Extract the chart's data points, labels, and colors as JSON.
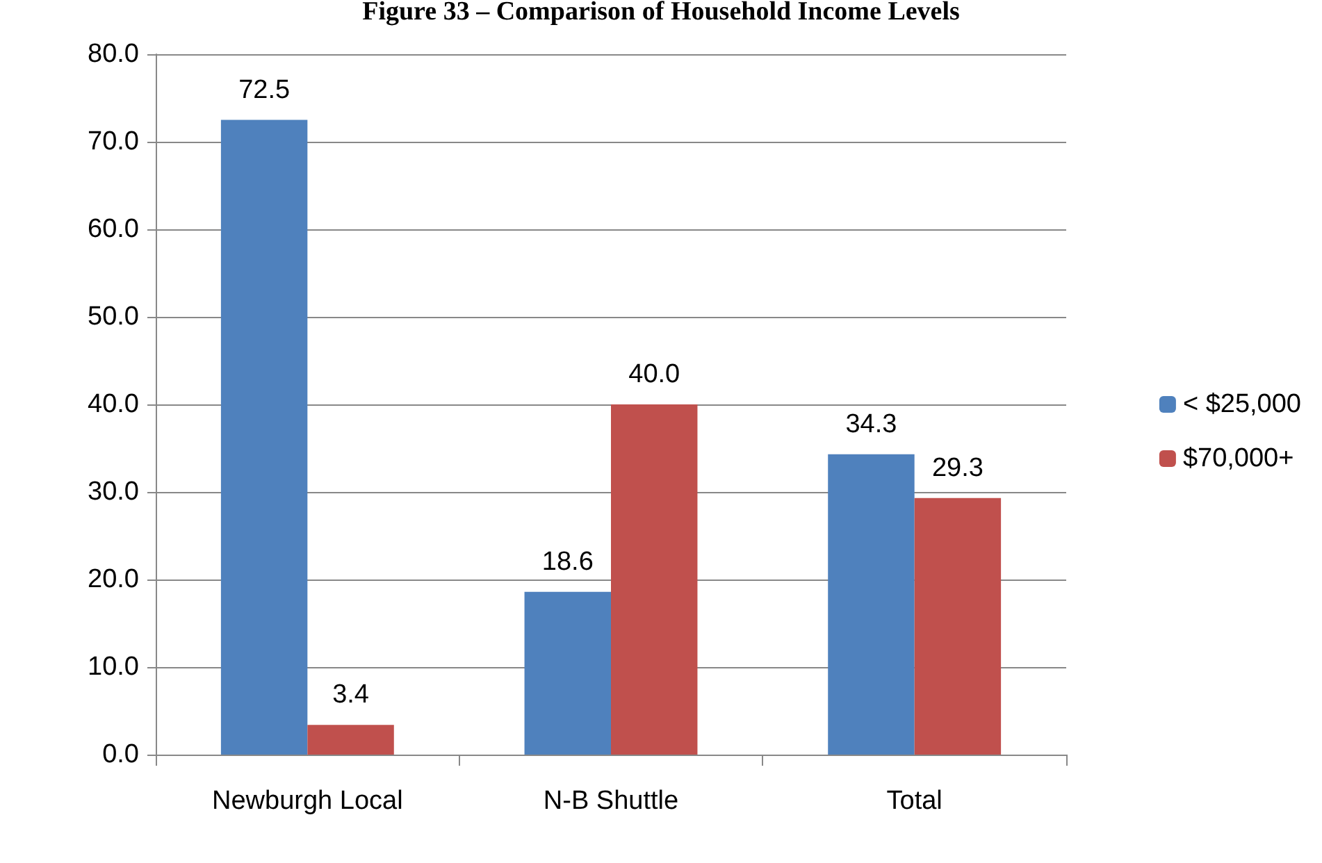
{
  "chart_data": {
    "type": "bar",
    "title": "Figure 33 – Comparison of Household Income Levels",
    "categories": [
      "Newburgh Local",
      "N-B Shuttle",
      "Total"
    ],
    "series": [
      {
        "name": "< $25,000",
        "color": "#4f81bd",
        "values": [
          72.5,
          18.6,
          34.3
        ],
        "value_labels": [
          "72.5",
          "18.6",
          "34.3"
        ]
      },
      {
        "name": "$70,000+",
        "color": "#c0504d",
        "values": [
          3.4,
          40.0,
          29.3
        ],
        "value_labels": [
          "3.4",
          "40.0",
          "29.3"
        ]
      }
    ],
    "ylim": [
      0,
      80
    ],
    "yticks": [
      {
        "value": 0,
        "label": "0.0"
      },
      {
        "value": 10,
        "label": "10.0"
      },
      {
        "value": 20,
        "label": "20.0"
      },
      {
        "value": 30,
        "label": "30.0"
      },
      {
        "value": 40,
        "label": "40.0"
      },
      {
        "value": 50,
        "label": "50.0"
      },
      {
        "value": 60,
        "label": "60.0"
      },
      {
        "value": 70,
        "label": "70.0"
      },
      {
        "value": 80,
        "label": "80.0"
      }
    ],
    "grid": "y",
    "legend": "right"
  }
}
